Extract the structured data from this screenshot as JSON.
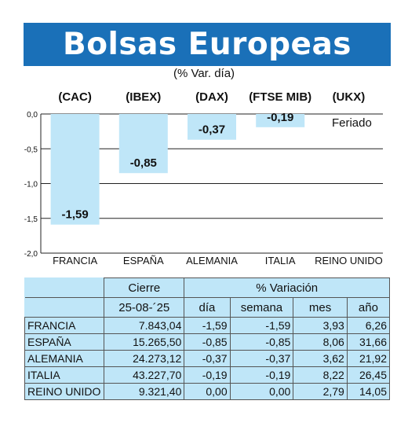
{
  "header": {
    "title": "Bolsas Europeas",
    "subtitle": "(% Var. día)"
  },
  "chart_data": {
    "type": "bar",
    "categories": [
      "FRANCIA",
      "ESPAÑA",
      "ALEMANIA",
      "ITALIA",
      "REINO UNIDO"
    ],
    "index_labels": [
      "(CAC)",
      "(IBEX)",
      "(DAX)",
      "(FTSE MIB)",
      "(UKX)"
    ],
    "values": [
      -1.59,
      -0.85,
      -0.37,
      -0.19,
      null
    ],
    "value_labels": [
      "-1,59",
      "-0,85",
      "-0,37",
      "-0,19",
      "Feriado"
    ],
    "ylim": [
      -2.0,
      0.0
    ],
    "yticks": [
      "0,0",
      "-0,5",
      "-1,0",
      "-1,5",
      "-2,0"
    ],
    "ytick_values": [
      0.0,
      -0.5,
      -1.0,
      -1.5,
      -2.0
    ],
    "grid": true,
    "bar_color": "#bfe6f8"
  },
  "table": {
    "header_cierre": "Cierre",
    "header_variacion": "% Variación",
    "date": "25-08-´25",
    "col_dia": "día",
    "col_semana": "semana",
    "col_mes": "mes",
    "col_ano": "año",
    "rows": [
      {
        "country": "FRANCIA",
        "cierre": "7.843,04",
        "dia": "-1,59",
        "semana": "-1,59",
        "mes": "3,93",
        "ano": "6,26"
      },
      {
        "country": "ESPAÑA",
        "cierre": "15.265,50",
        "dia": "-0,85",
        "semana": "-0,85",
        "mes": "8,06",
        "ano": "31,66"
      },
      {
        "country": "ALEMANIA",
        "cierre": "24.273,12",
        "dia": "-0,37",
        "semana": "-0,37",
        "mes": "3,62",
        "ano": "21,92"
      },
      {
        "country": "ITALIA",
        "cierre": "43.227,70",
        "dia": "-0,19",
        "semana": "-0,19",
        "mes": "8,22",
        "ano": "26,45"
      },
      {
        "country": "REINO UNIDO",
        "cierre": "9.321,40",
        "dia": "0,00",
        "semana": "0,00",
        "mes": "2,79",
        "ano": "14,05"
      }
    ]
  },
  "colors": {
    "banner": "#1a70b8",
    "bar": "#bfe6f8"
  }
}
